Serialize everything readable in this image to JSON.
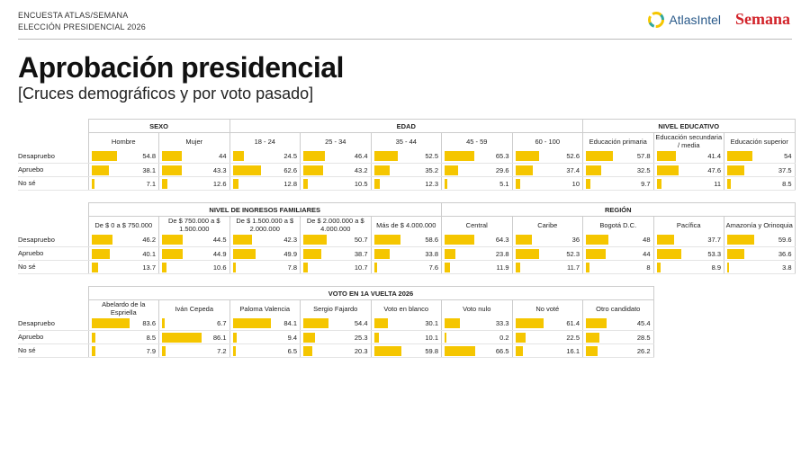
{
  "header": {
    "survey_line1": "ENCUESTA ATLAS/SEMANA",
    "survey_line2": "ELECCIÓN PRESIDENCIAL 2026",
    "logo_atlas": "AtlasIntel",
    "logo_semana": "Semana"
  },
  "title": "Aprobación presidencial",
  "subtitle": "[Cruces demográficos y por voto pasado]",
  "colors": {
    "bar": "#f5c600",
    "semana_red": "#d2232a",
    "atlas_blue": "#2a5a8a"
  },
  "row_labels": [
    "Desapruebo",
    "Apruebo",
    "No sé"
  ],
  "chart_data": [
    {
      "type": "table",
      "groups": [
        {
          "name": "SEXO",
          "columns": [
            {
              "name": "Hombre",
              "values": [
                54.8,
                38.1,
                7.1
              ]
            },
            {
              "name": "Mujer",
              "values": [
                44,
                43.3,
                12.6
              ]
            }
          ]
        },
        {
          "name": "EDAD",
          "columns": [
            {
              "name": "18 - 24",
              "values": [
                24.5,
                62.6,
                12.8
              ]
            },
            {
              "name": "25 - 34",
              "values": [
                46.4,
                43.2,
                10.5
              ]
            },
            {
              "name": "35 - 44",
              "values": [
                52.5,
                35.2,
                12.3
              ]
            },
            {
              "name": "45 - 59",
              "values": [
                65.3,
                29.6,
                5.1
              ]
            },
            {
              "name": "60 - 100",
              "values": [
                52.6,
                37.4,
                10
              ]
            }
          ]
        },
        {
          "name": "NIVEL EDUCATIVO",
          "columns": [
            {
              "name": "Educación primaria",
              "values": [
                57.8,
                32.5,
                9.7
              ]
            },
            {
              "name": "Educación secundaria / media",
              "values": [
                41.4,
                47.6,
                11
              ]
            },
            {
              "name": "Educación superior",
              "values": [
                54,
                37.5,
                8.5
              ]
            }
          ]
        }
      ]
    },
    {
      "type": "table",
      "groups": [
        {
          "name": "NIVEL DE INGRESOS FAMILIARES",
          "columns": [
            {
              "name": "De $ 0 a $ 750.000",
              "values": [
                46.2,
                40.1,
                13.7
              ]
            },
            {
              "name": "De $ 750.000 a $ 1.500.000",
              "values": [
                44.5,
                44.9,
                10.6
              ]
            },
            {
              "name": "De $ 1.500.000 a $ 2.000.000",
              "values": [
                42.3,
                49.9,
                7.8
              ]
            },
            {
              "name": "De $ 2.000.000 a $ 4.000.000",
              "values": [
                50.7,
                38.7,
                10.7
              ]
            },
            {
              "name": "Más de $ 4.000.000",
              "values": [
                58.6,
                33.8,
                7.6
              ]
            }
          ]
        },
        {
          "name": "REGIÓN",
          "columns": [
            {
              "name": "Central",
              "values": [
                64.3,
                23.8,
                11.9
              ]
            },
            {
              "name": "Caribe",
              "values": [
                36,
                52.3,
                11.7
              ]
            },
            {
              "name": "Bogotá D.C.",
              "values": [
                48,
                44,
                8
              ]
            },
            {
              "name": "Pacífica",
              "values": [
                37.7,
                53.3,
                8.9
              ]
            },
            {
              "name": "Amazonía y Orinoquia",
              "values": [
                59.6,
                36.6,
                3.8
              ]
            }
          ]
        }
      ]
    },
    {
      "type": "table",
      "groups": [
        {
          "name": "VOTO EN 1A VUELTA 2026",
          "columns": [
            {
              "name": "Abelardo de la Espriella",
              "values": [
                83.6,
                8.5,
                7.9
              ]
            },
            {
              "name": "Iván Cepeda",
              "values": [
                6.7,
                86.1,
                7.2
              ]
            },
            {
              "name": "Paloma Valencia",
              "values": [
                84.1,
                9.4,
                6.5
              ]
            },
            {
              "name": "Sergio Fajardo",
              "values": [
                54.4,
                25.3,
                20.3
              ]
            },
            {
              "name": "Voto en blanco",
              "values": [
                30.1,
                10.1,
                59.8
              ]
            },
            {
              "name": "Voto nulo",
              "values": [
                33.3,
                0.2,
                66.5
              ]
            },
            {
              "name": "No voté",
              "values": [
                61.4,
                22.5,
                16.1
              ]
            },
            {
              "name": "Otro candidato",
              "values": [
                45.4,
                28.5,
                26.2
              ]
            }
          ]
        }
      ]
    }
  ]
}
